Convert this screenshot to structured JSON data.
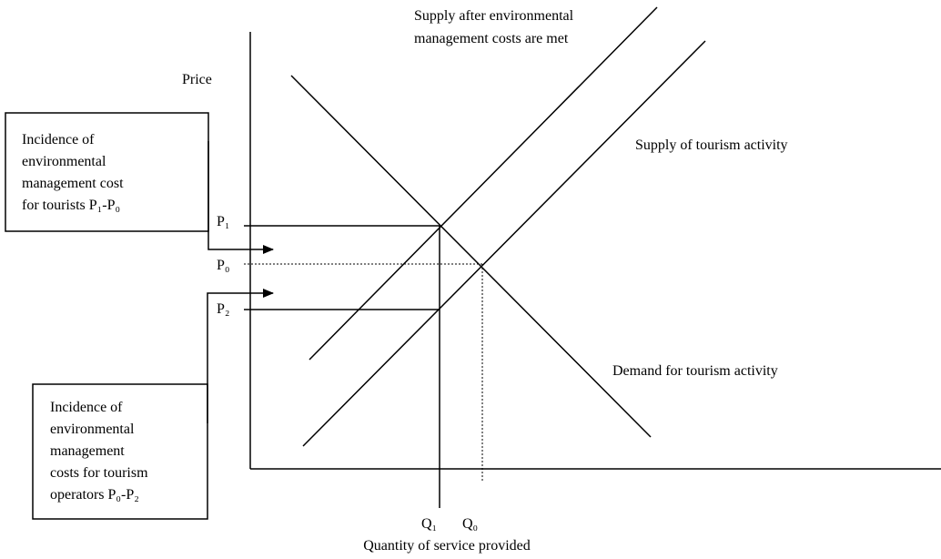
{
  "title_supply_after": {
    "lines": [
      "Supply after environmental",
      "management costs are met"
    ]
  },
  "axis": {
    "y_label": "Price",
    "x_label": "Quantity of service provided"
  },
  "curves": {
    "supply": "Supply of tourism activity",
    "demand": "Demand for tourism activity"
  },
  "price_labels": {
    "p1": "P₁",
    "p0": "P₀",
    "p2": "P₂"
  },
  "quantity_labels": {
    "q1": "Q₁",
    "q0": "Q₀"
  },
  "boxes": {
    "tourists": {
      "lines": [
        "Incidence of",
        "environmental",
        "management cost",
        "for tourists P₁-P₀"
      ]
    },
    "operators": {
      "lines": [
        "Incidence of",
        "environmental",
        "management",
        "costs for tourism",
        "operators P₀-P₂"
      ]
    }
  }
}
